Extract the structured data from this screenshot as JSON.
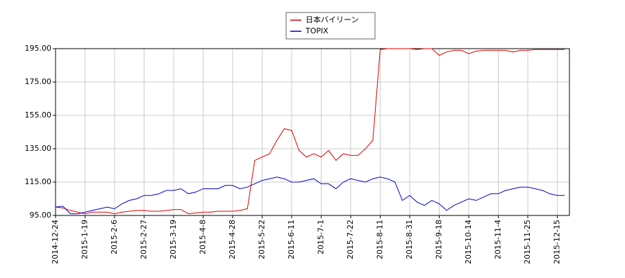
{
  "chart_data": {
    "type": "line",
    "categories": [
      "2014-12-24",
      null,
      null,
      null,
      "2015-1-19",
      null,
      null,
      null,
      "2015-2-6",
      null,
      null,
      null,
      "2015-2-27",
      null,
      null,
      null,
      "2015-3-19",
      null,
      null,
      null,
      "2015-4-8",
      null,
      null,
      null,
      "2015-4-28",
      null,
      null,
      null,
      "2015-5-22",
      null,
      null,
      null,
      "2015-6-11",
      null,
      null,
      null,
      "2015-7-1",
      null,
      null,
      null,
      "2015-7-22",
      null,
      null,
      null,
      "2015-8-11",
      null,
      null,
      null,
      "2015-8-31",
      null,
      null,
      null,
      "2015-9-18",
      null,
      null,
      null,
      "2015-10-14",
      null,
      null,
      null,
      "2015-11-4",
      null,
      null,
      null,
      "2015-11-25",
      null,
      null,
      null,
      "2015-12-15",
      null
    ],
    "series": [
      {
        "name": "日本バイリーン",
        "color": "#dd0000",
        "values": [
          100,
          99.5,
          98,
          97,
          96,
          97,
          97,
          97,
          96,
          97,
          97.5,
          98,
          98,
          97.5,
          97.5,
          98,
          98.5,
          98.5,
          96,
          96.5,
          97,
          97,
          97.5,
          97.5,
          97.5,
          98,
          99,
          128,
          130,
          132,
          140,
          147,
          146,
          134,
          130,
          132,
          130,
          134,
          128,
          132,
          131,
          131,
          135,
          140,
          194.5,
          195,
          195,
          195,
          195,
          194.5,
          195,
          195,
          191,
          193,
          194,
          194,
          192,
          193.5,
          194,
          194,
          194,
          194,
          193,
          194,
          194,
          194.5,
          194.5,
          194.5,
          194.5,
          194.5
        ]
      },
      {
        "name": "TOPIX",
        "color": "#0000cc",
        "values": [
          100,
          100.5,
          96,
          96,
          97,
          98,
          99,
          100,
          99,
          102,
          104,
          105,
          107,
          107,
          108,
          110,
          110,
          111,
          108,
          109,
          111,
          111,
          111,
          113,
          113,
          111,
          112,
          114,
          116,
          117,
          118,
          117,
          115,
          115,
          116,
          117,
          114,
          114,
          111,
          115,
          117,
          116,
          115,
          117,
          118,
          117,
          115,
          104,
          107,
          103,
          101,
          104,
          102,
          98,
          101,
          103,
          105,
          104,
          106,
          108,
          108,
          110,
          111,
          112,
          112,
          111,
          110,
          108,
          107,
          107
        ]
      }
    ],
    "ylim": [
      95,
      195
    ],
    "yticks": [
      {
        "value": 95,
        "label": "95.00"
      },
      {
        "value": 115,
        "label": "115.00"
      },
      {
        "value": 135,
        "label": "135.00"
      },
      {
        "value": 155,
        "label": "155.00"
      },
      {
        "value": 175,
        "label": "175.00"
      },
      {
        "value": 195,
        "label": "195.00"
      }
    ],
    "grid": true,
    "legend": "top"
  }
}
